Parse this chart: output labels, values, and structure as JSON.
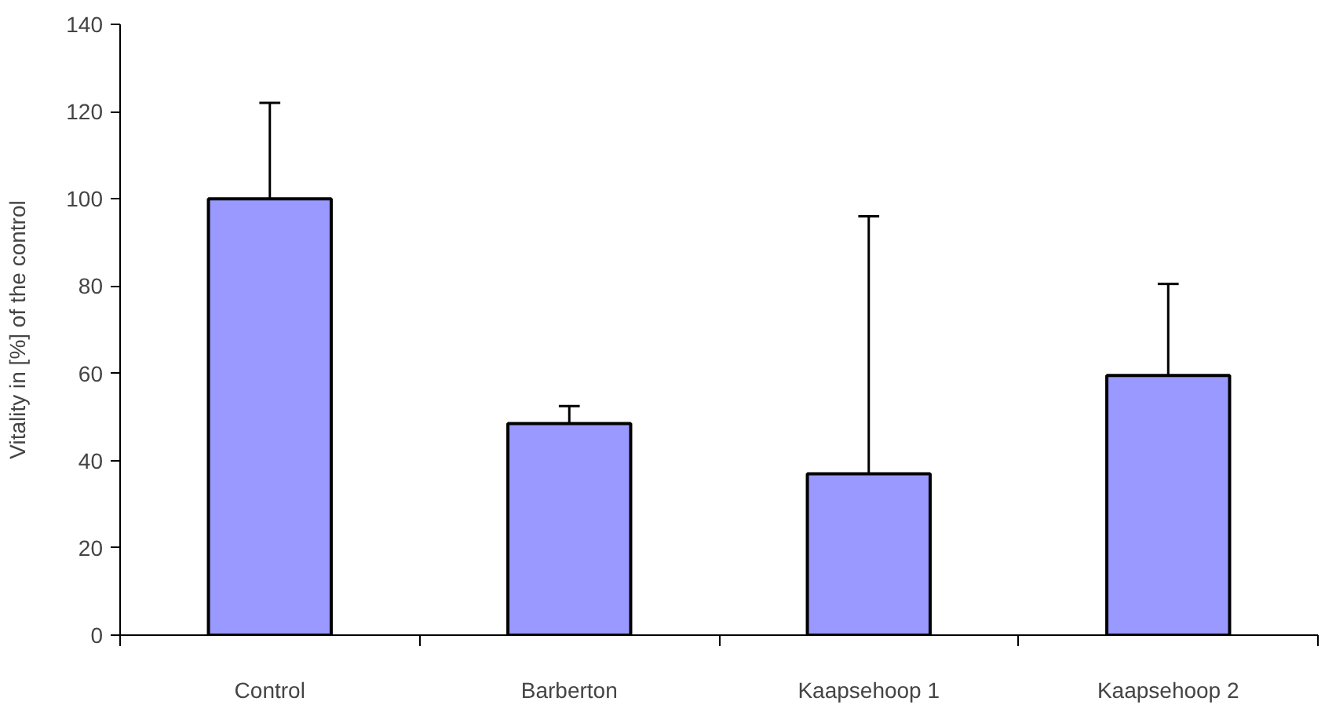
{
  "chart_data": {
    "type": "bar",
    "ylabel": "Vitality in [%] of the control",
    "categories": [
      "Control",
      "Barberton",
      "Kaapsehoop 1",
      "Kaapsehoop 2"
    ],
    "values": [
      100,
      48.5,
      37,
      59.5
    ],
    "errors": [
      [
        100,
        122
      ],
      [
        48.5,
        52.5
      ],
      [
        37,
        96
      ],
      [
        59.5,
        80.5
      ]
    ],
    "color": "#9999ff",
    "ylim": [
      0,
      140
    ],
    "yticks": [
      0,
      20,
      40,
      60,
      80,
      100,
      120,
      140
    ],
    "grid": false
  }
}
